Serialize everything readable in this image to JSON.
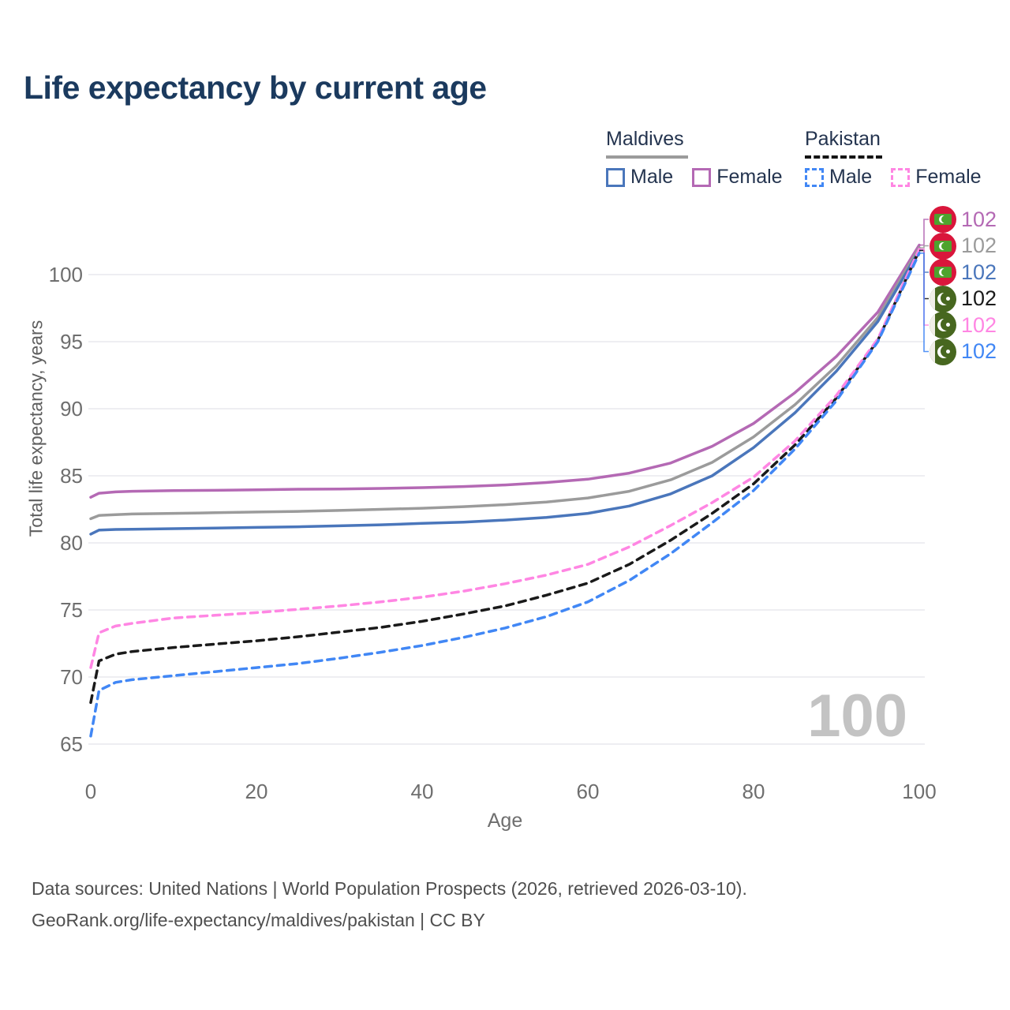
{
  "title": "Life expectancy by current age",
  "legend": {
    "groups": [
      {
        "title": "Maldives",
        "line_style": "solid",
        "line_color": "#9b9b9b",
        "items": [
          {
            "label": "Male",
            "color": "#4a76bb",
            "style": "solid"
          },
          {
            "label": "Female",
            "color": "#b469b4",
            "style": "solid"
          }
        ]
      },
      {
        "title": "Pakistan",
        "line_style": "dashed",
        "line_color": "#141414",
        "items": [
          {
            "label": "Male",
            "color": "#4187f5",
            "style": "dashed"
          },
          {
            "label": "Female",
            "color": "#ff86e3",
            "style": "dashed"
          }
        ]
      }
    ]
  },
  "watermark": "100",
  "footer": {
    "line1": "Data sources: United Nations | World Population Prospects (2026, retrieved 2026-03-10).",
    "line2": "GeoRank.org/life-expectancy/maldives/pakistan | CC BY"
  },
  "chart_data": {
    "type": "line",
    "title": "Life expectancy by current age",
    "xlabel": "Age",
    "ylabel": "Total life expectancy, years",
    "xlim": [
      0,
      100
    ],
    "ylim": [
      65,
      103
    ],
    "xticks": [
      0,
      20,
      40,
      60,
      80,
      100
    ],
    "yticks": [
      65,
      70,
      75,
      80,
      85,
      90,
      95,
      100
    ],
    "grid": true,
    "legend_position": "top-right",
    "series": [
      {
        "name": "Maldives Female",
        "country": "Maldives",
        "sex": "Female",
        "color": "#b469b4",
        "dash": false,
        "flag": "maldives",
        "end_label": "102",
        "points": [
          [
            0,
            83.4
          ],
          [
            1,
            83.7
          ],
          [
            3,
            83.8
          ],
          [
            5,
            83.85
          ],
          [
            10,
            83.9
          ],
          [
            15,
            83.92
          ],
          [
            20,
            83.95
          ],
          [
            25,
            84.0
          ],
          [
            30,
            84.02
          ],
          [
            35,
            84.06
          ],
          [
            40,
            84.12
          ],
          [
            45,
            84.2
          ],
          [
            50,
            84.32
          ],
          [
            55,
            84.5
          ],
          [
            60,
            84.75
          ],
          [
            65,
            85.2
          ],
          [
            70,
            85.95
          ],
          [
            75,
            87.2
          ],
          [
            80,
            88.9
          ],
          [
            85,
            91.2
          ],
          [
            90,
            93.9
          ],
          [
            95,
            97.2
          ],
          [
            100,
            102.2
          ]
        ]
      },
      {
        "name": "Maldives Both sexes",
        "country": "Maldives",
        "sex": "Both sexes",
        "color": "#9b9b9b",
        "dash": false,
        "flag": "maldives",
        "end_label": "102",
        "points": [
          [
            0,
            81.8
          ],
          [
            1,
            82.05
          ],
          [
            3,
            82.1
          ],
          [
            5,
            82.15
          ],
          [
            10,
            82.2
          ],
          [
            15,
            82.25
          ],
          [
            20,
            82.3
          ],
          [
            25,
            82.35
          ],
          [
            30,
            82.42
          ],
          [
            35,
            82.5
          ],
          [
            40,
            82.58
          ],
          [
            45,
            82.7
          ],
          [
            50,
            82.85
          ],
          [
            55,
            83.05
          ],
          [
            60,
            83.35
          ],
          [
            65,
            83.85
          ],
          [
            70,
            84.7
          ],
          [
            75,
            86.0
          ],
          [
            80,
            87.9
          ],
          [
            85,
            90.3
          ],
          [
            90,
            93.2
          ],
          [
            95,
            96.8
          ],
          [
            100,
            102.0
          ]
        ]
      },
      {
        "name": "Maldives Male",
        "country": "Maldives",
        "sex": "Male",
        "color": "#4a76bb",
        "dash": false,
        "flag": "maldives",
        "end_label": "102",
        "points": [
          [
            0,
            80.65
          ],
          [
            1,
            80.95
          ],
          [
            3,
            81.0
          ],
          [
            5,
            81.02
          ],
          [
            10,
            81.06
          ],
          [
            15,
            81.1
          ],
          [
            20,
            81.15
          ],
          [
            25,
            81.2
          ],
          [
            30,
            81.27
          ],
          [
            35,
            81.35
          ],
          [
            40,
            81.45
          ],
          [
            45,
            81.55
          ],
          [
            50,
            81.7
          ],
          [
            55,
            81.9
          ],
          [
            60,
            82.2
          ],
          [
            65,
            82.75
          ],
          [
            70,
            83.65
          ],
          [
            75,
            85.0
          ],
          [
            80,
            87.1
          ],
          [
            85,
            89.7
          ],
          [
            90,
            92.8
          ],
          [
            95,
            96.5
          ],
          [
            100,
            101.8
          ]
        ]
      },
      {
        "name": "Pakistan Both sexes",
        "country": "Pakistan",
        "sex": "Both sexes",
        "color": "#1a1a1a",
        "dash": true,
        "flag": "pakistan",
        "end_label": "102",
        "points": [
          [
            0,
            68.1
          ],
          [
            1,
            71.2
          ],
          [
            3,
            71.7
          ],
          [
            5,
            71.9
          ],
          [
            10,
            72.2
          ],
          [
            15,
            72.45
          ],
          [
            20,
            72.7
          ],
          [
            25,
            73.0
          ],
          [
            30,
            73.35
          ],
          [
            35,
            73.7
          ],
          [
            40,
            74.15
          ],
          [
            45,
            74.7
          ],
          [
            50,
            75.3
          ],
          [
            55,
            76.1
          ],
          [
            60,
            77.0
          ],
          [
            65,
            78.4
          ],
          [
            70,
            80.2
          ],
          [
            75,
            82.2
          ],
          [
            80,
            84.4
          ],
          [
            85,
            87.3
          ],
          [
            90,
            90.8
          ],
          [
            95,
            95.1
          ],
          [
            100,
            101.8
          ]
        ]
      },
      {
        "name": "Pakistan Female",
        "country": "Pakistan",
        "sex": "Female",
        "color": "#ff86e3",
        "dash": true,
        "flag": "pakistan",
        "end_label": "102",
        "points": [
          [
            0,
            70.7
          ],
          [
            1,
            73.3
          ],
          [
            3,
            73.8
          ],
          [
            5,
            74.0
          ],
          [
            10,
            74.4
          ],
          [
            15,
            74.6
          ],
          [
            20,
            74.8
          ],
          [
            25,
            75.05
          ],
          [
            30,
            75.3
          ],
          [
            35,
            75.6
          ],
          [
            40,
            75.95
          ],
          [
            45,
            76.4
          ],
          [
            50,
            76.95
          ],
          [
            55,
            77.6
          ],
          [
            60,
            78.4
          ],
          [
            65,
            79.7
          ],
          [
            70,
            81.3
          ],
          [
            75,
            83.0
          ],
          [
            80,
            84.9
          ],
          [
            85,
            87.6
          ],
          [
            90,
            91.0
          ],
          [
            95,
            95.2
          ],
          [
            100,
            101.9
          ]
        ]
      },
      {
        "name": "Pakistan Male",
        "country": "Pakistan",
        "sex": "Male",
        "color": "#4187f5",
        "dash": true,
        "flag": "pakistan",
        "end_label": "102",
        "points": [
          [
            0,
            65.6
          ],
          [
            1,
            69.0
          ],
          [
            3,
            69.6
          ],
          [
            5,
            69.8
          ],
          [
            10,
            70.1
          ],
          [
            15,
            70.4
          ],
          [
            20,
            70.7
          ],
          [
            25,
            71.0
          ],
          [
            30,
            71.4
          ],
          [
            35,
            71.85
          ],
          [
            40,
            72.35
          ],
          [
            45,
            72.95
          ],
          [
            50,
            73.65
          ],
          [
            55,
            74.5
          ],
          [
            60,
            75.6
          ],
          [
            65,
            77.2
          ],
          [
            70,
            79.2
          ],
          [
            75,
            81.5
          ],
          [
            80,
            83.9
          ],
          [
            85,
            87.0
          ],
          [
            90,
            90.6
          ],
          [
            95,
            95.0
          ],
          [
            100,
            101.6
          ]
        ]
      }
    ]
  }
}
